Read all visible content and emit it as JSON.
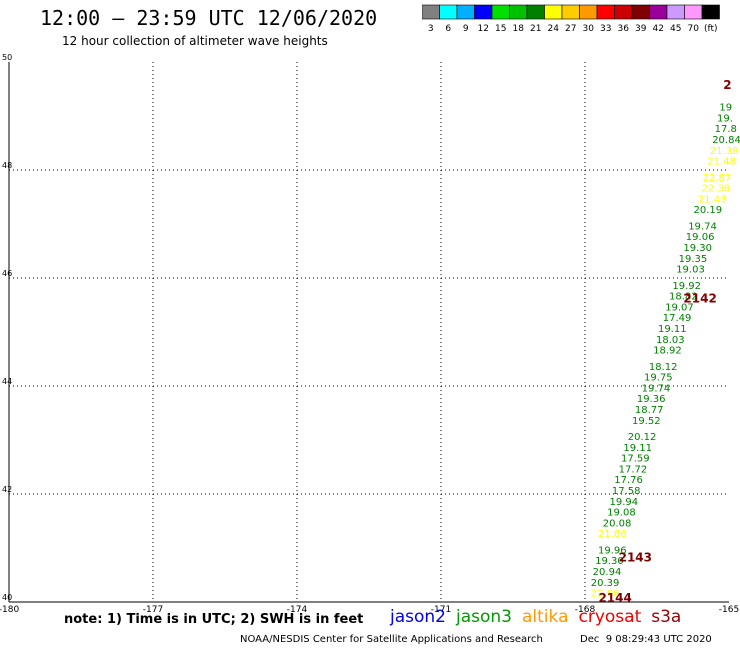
{
  "header": {
    "title": "12:00 – 23:59 UTC 12/06/2020",
    "subtitle": "12 hour collection of altimeter wave heights"
  },
  "legend": {
    "colors": [
      "#808080",
      "#00ffff",
      "#00b0ff",
      "#0000ff",
      "#00e000",
      "#00c000",
      "#008000",
      "#ffff00",
      "#ffcc00",
      "#ff9900",
      "#ff0000",
      "#cc0000",
      "#800000",
      "#990099",
      "#cc99ff",
      "#ff99ff",
      "#000000"
    ],
    "labels": [
      "3",
      "6",
      "9",
      "12",
      "15",
      "18",
      "21",
      "24",
      "27",
      "30",
      "33",
      "36",
      "39",
      "42",
      "45",
      "70",
      "(ft)"
    ]
  },
  "chart_data": {
    "type": "scatter",
    "xlim": [
      -180,
      -165
    ],
    "ylim": [
      40,
      50
    ],
    "x_ticks": [
      "-180",
      "-177",
      "-174",
      "-171",
      "-168",
      "-165"
    ],
    "y_ticks": [
      "40",
      "42",
      "44",
      "46",
      "48",
      "50"
    ],
    "grid": true,
    "points": [
      {
        "lon": -167.88,
        "lat": 40.1,
        "label": "22.66",
        "color": "#ffff00"
      },
      {
        "lon": -167.88,
        "lat": 40.3,
        "label": "20.39",
        "color": "#008000"
      },
      {
        "lon": -167.84,
        "lat": 40.5,
        "label": "20.94",
        "color": "#008000"
      },
      {
        "lon": -167.79,
        "lat": 40.7,
        "label": "19.30",
        "color": "#008000"
      },
      {
        "lon": -167.73,
        "lat": 40.9,
        "label": "19.96",
        "color": "#008000"
      },
      {
        "lon": -167.73,
        "lat": 41.2,
        "label": "21.86",
        "color": "#ffff00"
      },
      {
        "lon": -167.63,
        "lat": 41.4,
        "label": "20.08",
        "color": "#008000"
      },
      {
        "lon": -167.54,
        "lat": 41.6,
        "label": "19.08",
        "color": "#008000"
      },
      {
        "lon": -167.49,
        "lat": 41.8,
        "label": "19.94",
        "color": "#008000"
      },
      {
        "lon": -167.44,
        "lat": 42.0,
        "label": "17.58",
        "color": "#008000"
      },
      {
        "lon": -167.39,
        "lat": 42.2,
        "label": "17.76",
        "color": "#008000"
      },
      {
        "lon": -167.3,
        "lat": 42.4,
        "label": "17.72",
        "color": "#008000"
      },
      {
        "lon": -167.25,
        "lat": 42.6,
        "label": "17.59",
        "color": "#008000"
      },
      {
        "lon": -167.2,
        "lat": 42.8,
        "label": "19.11",
        "color": "#008000"
      },
      {
        "lon": -167.11,
        "lat": 43.0,
        "label": "20.12",
        "color": "#008000"
      },
      {
        "lon": -167.02,
        "lat": 43.3,
        "label": "19.52",
        "color": "#008000"
      },
      {
        "lon": -166.96,
        "lat": 43.5,
        "label": "18.77",
        "color": "#008000"
      },
      {
        "lon": -166.92,
        "lat": 43.7,
        "label": "19.36",
        "color": "#008000"
      },
      {
        "lon": -166.82,
        "lat": 43.9,
        "label": "19.74",
        "color": "#008000"
      },
      {
        "lon": -166.77,
        "lat": 44.1,
        "label": "19.75",
        "color": "#008000"
      },
      {
        "lon": -166.67,
        "lat": 44.3,
        "label": "18.12",
        "color": "#008000"
      },
      {
        "lon": -166.58,
        "lat": 44.6,
        "label": "18.92",
        "color": "#008000"
      },
      {
        "lon": -166.52,
        "lat": 44.8,
        "label": "18.03",
        "color": "#008000"
      },
      {
        "lon": -166.48,
        "lat": 45.0,
        "label": "19.11",
        "color": "#008000"
      },
      {
        "lon": -166.38,
        "lat": 45.2,
        "label": "17.49",
        "color": "#008000"
      },
      {
        "lon": -166.33,
        "lat": 45.4,
        "label": "19.07",
        "color": "#008000"
      },
      {
        "lon": -166.25,
        "lat": 45.6,
        "label": "18.82",
        "color": "#008000"
      },
      {
        "lon": -166.18,
        "lat": 45.8,
        "label": "19.92",
        "color": "#008000"
      },
      {
        "lon": -166.1,
        "lat": 46.1,
        "label": "19.03",
        "color": "#008000"
      },
      {
        "lon": -166.05,
        "lat": 46.3,
        "label": "19.35",
        "color": "#008000"
      },
      {
        "lon": -165.95,
        "lat": 46.5,
        "label": "19.30",
        "color": "#008000"
      },
      {
        "lon": -165.9,
        "lat": 46.7,
        "label": "19.06",
        "color": "#008000"
      },
      {
        "lon": -165.85,
        "lat": 46.9,
        "label": "19.74",
        "color": "#008000"
      },
      {
        "lon": -165.74,
        "lat": 47.2,
        "label": "20.19",
        "color": "#008000"
      },
      {
        "lon": -165.65,
        "lat": 47.4,
        "label": "21.43",
        "color": "#ffff00"
      },
      {
        "lon": -165.57,
        "lat": 47.6,
        "label": "22.38",
        "color": "#ffff00"
      },
      {
        "lon": -165.55,
        "lat": 47.8,
        "label": "22.87",
        "color": "#ffff00"
      },
      {
        "lon": -165.45,
        "lat": 48.1,
        "label": "21.48",
        "color": "#ffff00"
      },
      {
        "lon": -165.4,
        "lat": 48.3,
        "label": "21.38",
        "color": "#ffff00"
      },
      {
        "lon": -165.35,
        "lat": 48.5,
        "label": "20.84",
        "color": "#008000"
      },
      {
        "lon": -165.3,
        "lat": 48.7,
        "label": "17.8",
        "color": "#008000"
      },
      {
        "lon": -165.25,
        "lat": 48.9,
        "label": "19.",
        "color": "#008000"
      },
      {
        "lon": -165.2,
        "lat": 49.1,
        "label": "19",
        "color": "#008000"
      }
    ],
    "time_labels": [
      {
        "lon": -167.72,
        "lat": 40.0,
        "label": "2144",
        "color": "#800000"
      },
      {
        "lon": -167.3,
        "lat": 40.75,
        "label": "2143",
        "color": "#800000"
      },
      {
        "lon": -165.95,
        "lat": 45.55,
        "label": "2142",
        "color": "#800000"
      },
      {
        "lon": -165.12,
        "lat": 49.5,
        "label": "2",
        "color": "#800000"
      }
    ]
  },
  "footer": {
    "note": "note: 1) Time is in UTC; 2) SWH is in feet",
    "missions": [
      {
        "name": "jason2",
        "color": "#0000ee"
      },
      {
        "name": "jason3",
        "color": "#009900"
      },
      {
        "name": "altika",
        "color": "#ff9900"
      },
      {
        "name": "cryosat",
        "color": "#ee0000"
      },
      {
        "name": "s3a",
        "color": "#990000"
      }
    ],
    "credit": "NOAA/NESDIS Center for Satellite Applications and Research",
    "stamp": "Dec  9 08:29:43 UTC 2020"
  }
}
